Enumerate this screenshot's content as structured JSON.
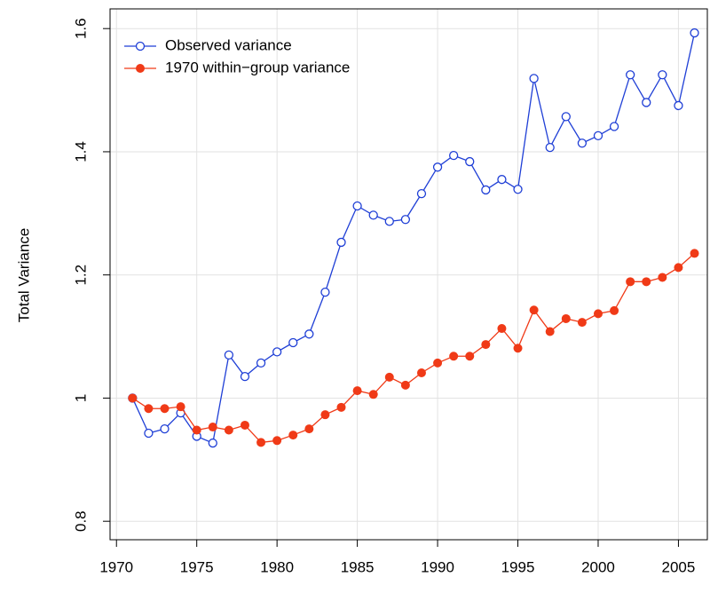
{
  "chart_data": {
    "type": "line",
    "y_label": "Total Variance",
    "x": [
      1971,
      1972,
      1973,
      1974,
      1975,
      1976,
      1977,
      1978,
      1979,
      1980,
      1981,
      1982,
      1983,
      1984,
      1985,
      1986,
      1987,
      1988,
      1989,
      1990,
      1991,
      1992,
      1993,
      1994,
      1995,
      1996,
      1997,
      1998,
      1999,
      2000,
      2001,
      2002,
      2003,
      2004,
      2005,
      2006
    ],
    "series": [
      {
        "name": "Observed variance",
        "color": "#1f3fd6",
        "marker": "open",
        "values": [
          1.0,
          0.943,
          0.95,
          0.976,
          0.938,
          0.927,
          1.07,
          1.035,
          1.057,
          1.075,
          1.09,
          1.104,
          1.172,
          1.253,
          1.312,
          1.297,
          1.287,
          1.29,
          1.332,
          1.375,
          1.394,
          1.384,
          1.338,
          1.355,
          1.339,
          1.519,
          1.407,
          1.457,
          1.414,
          1.426,
          1.441,
          1.525,
          1.48,
          1.525,
          1.475,
          1.593
        ]
      },
      {
        "name": "1970 within−group variance",
        "color": "#f03a17",
        "marker": "filled",
        "values": [
          1.0,
          0.983,
          0.983,
          0.986,
          0.948,
          0.953,
          0.948,
          0.956,
          0.928,
          0.931,
          0.94,
          0.95,
          0.973,
          0.985,
          1.012,
          1.006,
          1.034,
          1.021,
          1.041,
          1.057,
          1.068,
          1.068,
          1.087,
          1.113,
          1.081,
          1.143,
          1.108,
          1.129,
          1.123,
          1.137,
          1.142,
          1.189,
          1.189,
          1.196,
          1.212,
          1.235
        ]
      }
    ],
    "xlim": [
      1969.6,
      2006.8
    ],
    "ylim": [
      0.77,
      1.632
    ],
    "xticks": [
      1970,
      1975,
      1980,
      1985,
      1990,
      1995,
      2000,
      2005
    ],
    "yticks": [
      0.8,
      1.0,
      1.2,
      1.4,
      1.6
    ],
    "grid": true,
    "legend": "topleft"
  }
}
